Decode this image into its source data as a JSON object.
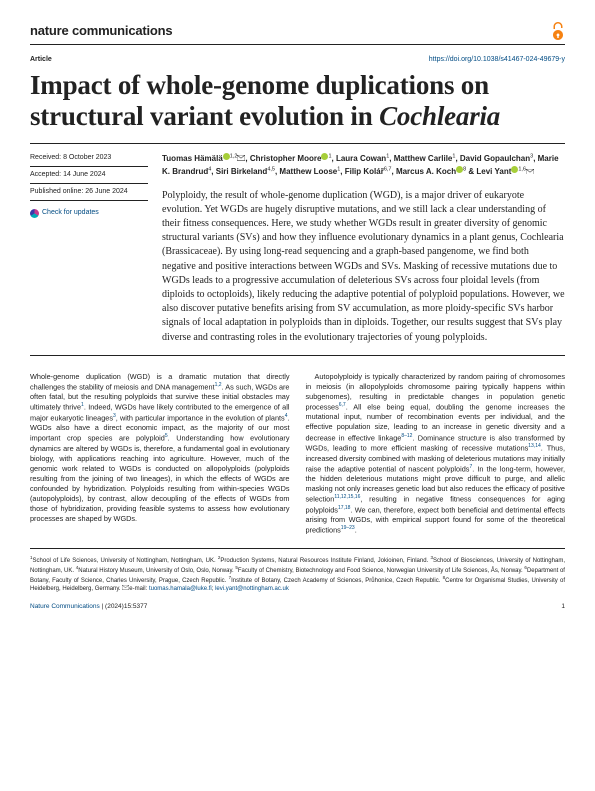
{
  "journal": "nature communications",
  "doi_url": "https://doi.org/10.1038/s41467-024-49679-y",
  "article_label": "Article",
  "title_html": "Impact of whole-genome duplications on structural variant evolution in <em>Cochlearia</em>",
  "meta": {
    "received": "Received: 8 October 2023",
    "accepted": "Accepted: 14 June 2024",
    "published": "Published online: 26 June 2024",
    "check": "Check for updates"
  },
  "authors_html": "Tuomas Hämälä<span class='orcid'><svg viewBox='0 0 10 10'><circle cx='5' cy='5' r='5'/></svg></span><span class='sup'>1,2</span><span class='mail'><svg viewBox='0 0 10 7'><rect x='0' y='0' width='10' height='7' fill='none' stroke='#222' stroke-width='0.7'/><path d='M0 0 L5 4 L10 0' fill='none' stroke='#222' stroke-width='0.7'/></svg></span>, Christopher Moore<span class='orcid'><svg viewBox='0 0 10 10'><circle cx='5' cy='5' r='5'/></svg></span><span class='sup'>1</span>, Laura Cowan<span class='sup'>1</span>, Matthew Carlile<span class='sup'>1</span>, David Gopaulchan<span class='sup'>3</span>, Marie K. Brandrud<span class='sup'>4</span>, Siri Birkeland<span class='sup'>4,5</span>, Matthew Loose<span class='sup'>1</span>, Filip Kolář<span class='sup'>6,7</span>, Marcus A. Koch<span class='orcid'><svg viewBox='0 0 10 10'><circle cx='5' cy='5' r='5'/></svg></span><span class='sup'>8</span> & Levi Yant<span class='orcid'><svg viewBox='0 0 10 10'><circle cx='5' cy='5' r='5'/></svg></span><span class='sup'>1,6</span><span class='mail'><svg viewBox='0 0 10 7'><rect x='0' y='0' width='10' height='7' fill='none' stroke='#222' stroke-width='0.7'/><path d='M0 0 L5 4 L10 0' fill='none' stroke='#222' stroke-width='0.7'/></svg></span>",
  "abstract": "Polyploidy, the result of whole-genome duplication (WGD), is a major driver of eukaryote evolution. Yet WGDs are hugely disruptive mutations, and we still lack a clear understanding of their fitness consequences. Here, we study whether WGDs result in greater diversity of genomic structural variants (SVs) and how they influence evolutionary dynamics in a plant genus, Cochlearia (Brassicaceae). By using long-read sequencing and a graph-based pangenome, we find both negative and positive interactions between WGDs and SVs. Masking of recessive mutations due to WGDs leads to a progressive accumulation of deleterious SVs across four ploidal levels (from diploids to octoploids), likely reducing the adaptive potential of polyploid populations. However, we also discover putative benefits arising from SV accumulation, as more ploidy-specific SVs harbor signals of local adaptation in polyploids than in diploids. Together, our results suggest that SVs play diverse and contrasting roles in the evolutionary trajectories of young polyploids.",
  "body_col1_p1": "Whole-genome duplication (WGD) is a dramatic mutation that directly challenges the stability of meiosis and DNA management<span class='sup'>1,2</span>. As such, WGDs are often fatal, but the resulting polyploids that survive these initial obstacles may ultimately thrive<span class='sup'>1</span>. Indeed, WGDs have likely contributed to the emergence of all major eukaryotic lineages<span class='sup'>3</span>, with particular importance in the evolution of plants<span class='sup'>4</span>. WGDs also have a direct economic impact, as the majority of our most important crop species are polyploid<span class='sup'>5</span>. Understanding how evolutionary dynamics are altered by WGDs is, therefore, a fundamental goal in evolutionary biology, with applications reaching into agriculture. However, much of the genomic work related to WGDs is conducted on allopolyploids (polyploids resulting from the joining of two lineages), in which the effects of WGDs are confounded by hybridization. Polyploids resulting from within-species WGDs (autopolyploids), by contrast, allow decoupling of the effects of WGDs from those of hybridization, providing feasible systems to assess how evolutionary processes are shaped by WGDs.",
  "body_col2_p1": "Autopolyploidy is typically characterized by random pairing of chromosomes in meiosis (in allopolyploids chromosome pairing typically happens within subgenomes), resulting in predictable changes in population genetic processes<span class='sup'>6,7</span>. All else being equal, doubling the genome increases the mutational input, number of recombination events per individual, and the effective population size, leading to an increase in genetic diversity and a decrease in effective linkage<span class='sup'>8–12</span>. Dominance structure is also transformed by WGDs, leading to more efficient masking of recessive mutations<span class='sup'>13,14</span>. Thus, increased diversity combined with masking of deleterious mutations may initially raise the adaptive potential of nascent polyploids<span class='sup'>7</span>. In the long-term, however, the hidden deleterious mutations might prove difficult to purge, and allelic masking not only increases genetic load but also reduces the efficacy of positive selection<span class='sup'>11,12,15,16</span>, resulting in negative fitness consequences for aging polyploids<span class='sup'>17,18</span>. We can, therefore, expect both beneficial and detrimental effects arising from WGDs, with empirical support found for some of the theoretical predictions<span class='sup'>19–23</span>.",
  "affiliations_html": "<span class='sup'>1</span>School of Life Sciences, University of Nottingham, Nottingham, UK. <span class='sup'>2</span>Production Systems, Natural Resources Institute Finland, Jokioinen, Finland. <span class='sup'>3</span>School of Biosciences, University of Nottingham, Nottingham, UK. <span class='sup'>4</span>Natural History Museum, University of Oslo, Oslo, Norway. <span class='sup'>5</span>Faculty of Chemistry, Biotechnology and Food Science, Norwegian University of Life Sciences, Ås, Norway. <span class='sup'>6</span>Department of Botany, Faculty of Science, Charles University, Prague, Czech Republic. <span class='sup'>7</span>Institute of Botany, Czech Academy of Sciences, Průhonice, Czech Republic. <span class='sup'>8</span>Centre for Organismal Studies, University of Heidelberg, Heidelberg, Germany. <span class='mail'><svg viewBox='0 0 10 7'><rect x='0' y='0' width='10' height='7' fill='none' stroke='#222' stroke-width='0.6'/><path d='M0 0 L5 4 L10 0' fill='none' stroke='#222' stroke-width='0.6'/></svg></span>e-mail: <a>tuomas.hamala@luke.fi</a>; <a>levi.yant@nottingham.ac.uk</a>",
  "footer": {
    "journal_ref": "Nature Communications",
    "citation": "| (2024)15:5377",
    "page_num": "1"
  },
  "colors": {
    "link": "#004b83",
    "oa_orange": "#f68212",
    "orcid_green": "#a6ce39",
    "text": "#222222",
    "bg": "#ffffff"
  }
}
